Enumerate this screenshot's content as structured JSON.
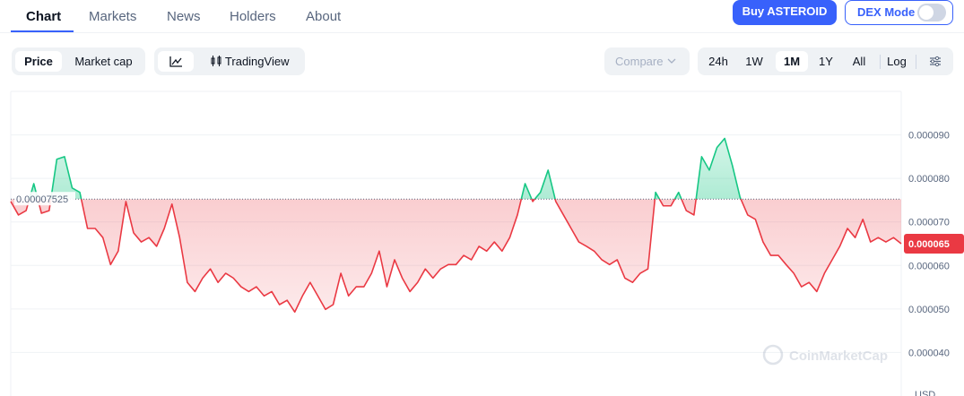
{
  "tabs": [
    "Chart",
    "Markets",
    "News",
    "Holders",
    "About"
  ],
  "buy_button": "Buy ASTEROID",
  "dex_mode": "DEX Mode",
  "chart_kind": [
    "Price",
    "Market cap"
  ],
  "tradingview": "TradingView",
  "compare": "Compare",
  "ranges": [
    "24h",
    "1W",
    "1M",
    "1Y",
    "All"
  ],
  "log": "Log",
  "watermark": "CoinMarketCap",
  "chart_data": {
    "type": "line",
    "unit": "USD",
    "values": [
      7.47e-05,
      7.16e-05,
      7.26e-05,
      7.88e-05,
      7.2e-05,
      7.26e-05,
      8.44e-05,
      8.5e-05,
      7.78e-05,
      7.68e-05,
      6.85e-05,
      6.85e-05,
      6.64e-05,
      6.02e-05,
      6.33e-05,
      7.47e-05,
      6.75e-05,
      6.54e-05,
      6.64e-05,
      6.44e-05,
      6.85e-05,
      7.41e-05,
      6.64e-05,
      5.61e-05,
      5.4e-05,
      5.71e-05,
      5.92e-05,
      5.61e-05,
      5.82e-05,
      5.71e-05,
      5.51e-05,
      5.4e-05,
      5.51e-05,
      5.3e-05,
      5.4e-05,
      5.1e-05,
      5.2e-05,
      4.93e-05,
      5.3e-05,
      5.61e-05,
      5.3e-05,
      4.99e-05,
      5.1e-05,
      5.82e-05,
      5.3e-05,
      5.51e-05,
      5.51e-05,
      5.82e-05,
      6.33e-05,
      5.51e-05,
      6.13e-05,
      5.71e-05,
      5.4e-05,
      5.61e-05,
      5.92e-05,
      5.71e-05,
      5.92e-05,
      6.02e-05,
      6.02e-05,
      6.23e-05,
      6.13e-05,
      6.44e-05,
      6.33e-05,
      6.54e-05,
      6.33e-05,
      6.64e-05,
      7.16e-05,
      7.88e-05,
      7.47e-05,
      7.68e-05,
      8.19e-05,
      7.47e-05,
      7.16e-05,
      6.85e-05,
      6.54e-05,
      6.44e-05,
      6.33e-05,
      6.13e-05,
      6.02e-05,
      6.13e-05,
      5.71e-05,
      5.61e-05,
      5.82e-05,
      5.92e-05,
      7.68e-05,
      7.37e-05,
      7.37e-05,
      7.68e-05,
      7.26e-05,
      7.16e-05,
      8.5e-05,
      8.19e-05,
      8.71e-05,
      8.92e-05,
      8.3e-05,
      7.57e-05,
      7.16e-05,
      7.06e-05,
      6.54e-05,
      6.23e-05,
      6.23e-05,
      6.02e-05,
      5.82e-05,
      5.51e-05,
      5.61e-05,
      5.4e-05,
      5.82e-05,
      6.13e-05,
      6.44e-05,
      6.85e-05,
      6.64e-05,
      7.06e-05,
      6.54e-05,
      6.64e-05,
      6.54e-05,
      6.64e-05,
      6.5e-05
    ],
    "reference_value": 7.525e-05,
    "last_price": 6.5e-05,
    "ylim": [
      3e-05,
      0.0001
    ],
    "yticks": [
      {
        "value": 4e-05,
        "label": "0.000040"
      },
      {
        "value": 5e-05,
        "label": "0.000050"
      },
      {
        "value": 6e-05,
        "label": "0.000060"
      },
      {
        "value": 7e-05,
        "label": "0.000070"
      },
      {
        "value": 8e-05,
        "label": "0.000080"
      },
      {
        "value": 9e-05,
        "label": "0.000090"
      }
    ],
    "grid": true,
    "up_color": "#16c784",
    "down_color": "#ea3943"
  }
}
